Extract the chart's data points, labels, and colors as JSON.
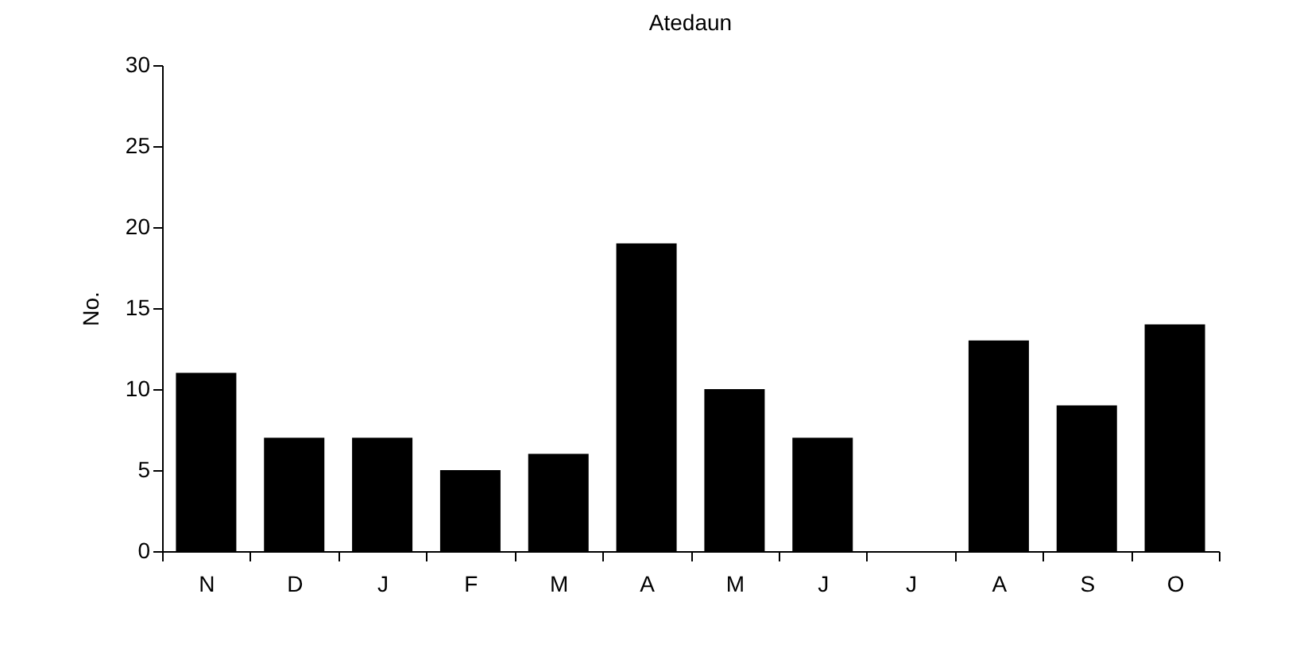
{
  "chart_data": {
    "type": "bar",
    "title": "Atedaun",
    "ylabel": "No.",
    "categories": [
      "N",
      "D",
      "J",
      "F",
      "M",
      "A",
      "M",
      "J",
      "J",
      "A",
      "S",
      "O"
    ],
    "values": [
      11,
      7,
      7,
      5,
      6,
      19,
      10,
      7,
      0,
      13,
      9,
      14
    ],
    "color": "#000000",
    "ylim": [
      0,
      30
    ],
    "yticks": [
      0,
      5,
      10,
      15,
      20,
      25,
      30
    ],
    "grid": false
  }
}
